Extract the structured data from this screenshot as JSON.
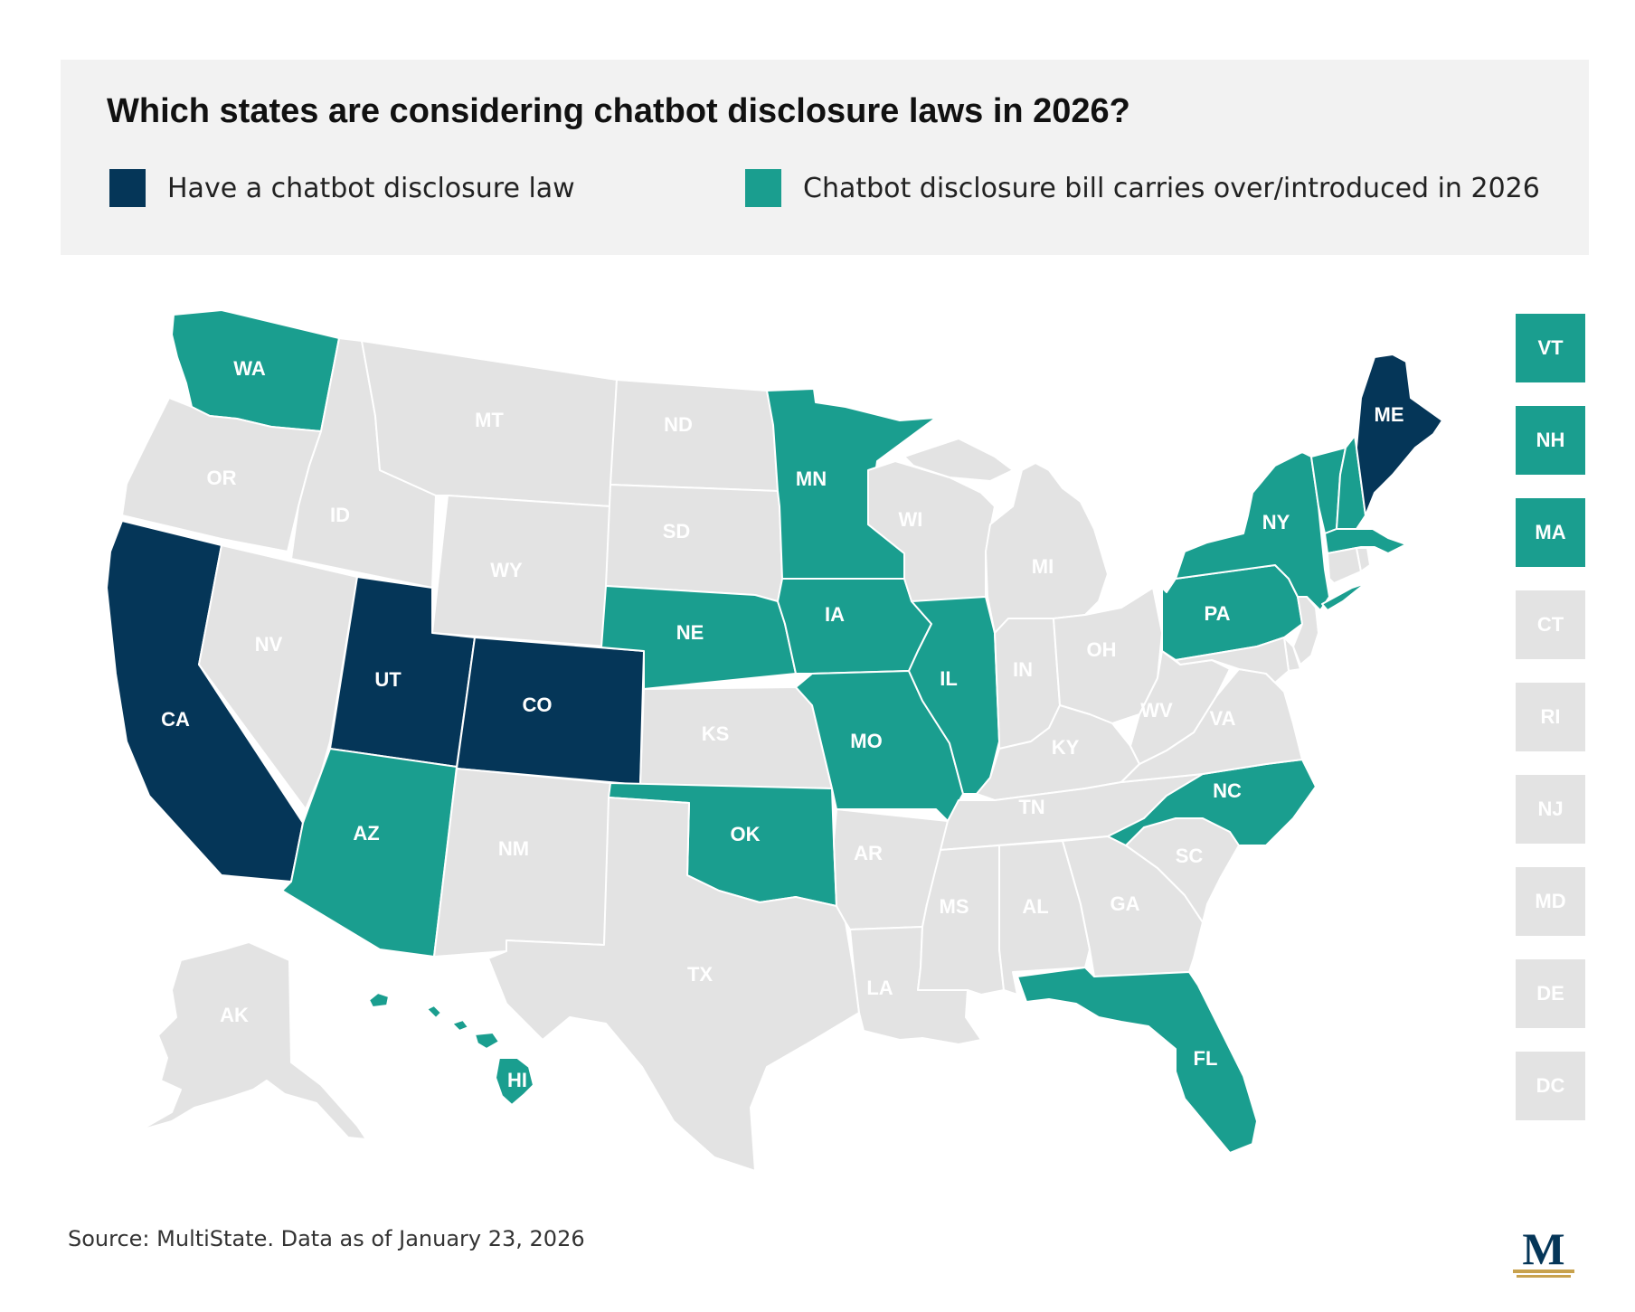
{
  "title": "Which states are considering chatbot disclosure laws in 2026?",
  "legend": [
    {
      "label": "Have a chatbot disclosure law",
      "color": "#053658"
    },
    {
      "label": "Chatbot disclosure bill carries over/introduced in 2026",
      "color": "#1a9e8f"
    }
  ],
  "colors": {
    "law": "#053658",
    "bill": "#1a9e8f",
    "none": "#e3e3e3",
    "header_bg": "#f2f2f2",
    "logo_gold": "#c8a24e"
  },
  "states": {
    "WA": {
      "label": "WA",
      "status": "bill"
    },
    "OR": {
      "label": "OR",
      "status": "none"
    },
    "CA": {
      "label": "CA",
      "status": "law"
    },
    "ID": {
      "label": "ID",
      "status": "none"
    },
    "NV": {
      "label": "NV",
      "status": "none"
    },
    "MT": {
      "label": "MT",
      "status": "none"
    },
    "WY": {
      "label": "WY",
      "status": "none"
    },
    "UT": {
      "label": "UT",
      "status": "law"
    },
    "CO": {
      "label": "CO",
      "status": "law"
    },
    "AZ": {
      "label": "AZ",
      "status": "bill"
    },
    "NM": {
      "label": "NM",
      "status": "none"
    },
    "ND": {
      "label": "ND",
      "status": "none"
    },
    "SD": {
      "label": "SD",
      "status": "none"
    },
    "NE": {
      "label": "NE",
      "status": "bill"
    },
    "KS": {
      "label": "KS",
      "status": "none"
    },
    "OK": {
      "label": "OK",
      "status": "bill"
    },
    "TX": {
      "label": "TX",
      "status": "none"
    },
    "MN": {
      "label": "MN",
      "status": "bill"
    },
    "IA": {
      "label": "IA",
      "status": "bill"
    },
    "MO": {
      "label": "MO",
      "status": "bill"
    },
    "AR": {
      "label": "AR",
      "status": "none"
    },
    "LA": {
      "label": "LA",
      "status": "none"
    },
    "WI": {
      "label": "WI",
      "status": "none"
    },
    "IL": {
      "label": "IL",
      "status": "bill"
    },
    "MI": {
      "label": "MI",
      "status": "none"
    },
    "IN": {
      "label": "IN",
      "status": "none"
    },
    "OH": {
      "label": "OH",
      "status": "none"
    },
    "KY": {
      "label": "KY",
      "status": "none"
    },
    "TN": {
      "label": "TN",
      "status": "none"
    },
    "MS": {
      "label": "MS",
      "status": "none"
    },
    "AL": {
      "label": "AL",
      "status": "none"
    },
    "GA": {
      "label": "GA",
      "status": "none"
    },
    "FL": {
      "label": "FL",
      "status": "bill"
    },
    "SC": {
      "label": "SC",
      "status": "none"
    },
    "NC": {
      "label": "NC",
      "status": "bill"
    },
    "VA": {
      "label": "VA",
      "status": "none"
    },
    "WV": {
      "label": "WV",
      "status": "none"
    },
    "PA": {
      "label": "PA",
      "status": "bill"
    },
    "NY": {
      "label": "NY",
      "status": "bill"
    },
    "ME": {
      "label": "ME",
      "status": "law"
    },
    "AK": {
      "label": "AK",
      "status": "none"
    },
    "HI": {
      "label": "HI",
      "status": "bill"
    }
  },
  "small_states": [
    {
      "label": "VT",
      "status": "bill"
    },
    {
      "label": "NH",
      "status": "bill"
    },
    {
      "label": "MA",
      "status": "bill"
    },
    {
      "label": "CT",
      "status": "none"
    },
    {
      "label": "RI",
      "status": "none"
    },
    {
      "label": "NJ",
      "status": "none"
    },
    {
      "label": "MD",
      "status": "none"
    },
    {
      "label": "DE",
      "status": "none"
    },
    {
      "label": "DC",
      "status": "none"
    }
  ],
  "source": "Source: MultiState. Data as of January 23, 2026",
  "logo": {
    "letter": "M"
  }
}
